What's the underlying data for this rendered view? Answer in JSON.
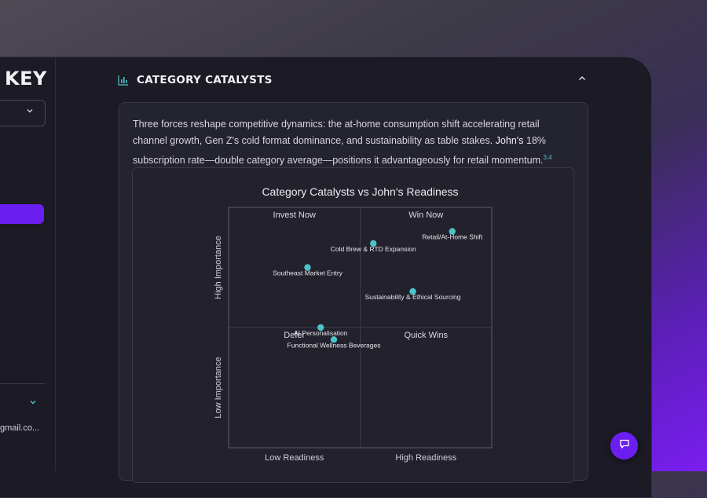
{
  "sidebar": {
    "brand_text": "KEY",
    "email_text": "gmail.co..."
  },
  "section": {
    "title": "CATEGORY CATALYSTS",
    "icon": "bar-chart-icon",
    "collapse_icon": "chevron-up-icon"
  },
  "summary": {
    "text_before": "Three forces reshape competitive dynamics: the at-home consumption shift accelerating retail channel growth, Gen Z's cold format dominance, and sustainability as table stakes.",
    "highlight": "John's",
    "text_after": "18% subscription rate—double category average—positions it advantageously for retail momentum.",
    "citation": "3,4"
  },
  "chart_data": {
    "type": "scatter",
    "title": "Category Catalysts vs John's Readiness",
    "x_tick_labels": [
      "Low Readiness",
      "High Readiness"
    ],
    "y_tick_labels": [
      "Low Importance",
      "High Importance"
    ],
    "quadrants": [
      "Invest Now",
      "Win Now",
      "Defer",
      "Quick Wins"
    ],
    "xlim": [
      0,
      10
    ],
    "ylim": [
      0,
      10
    ],
    "point_color": "#4bc4c9",
    "points": [
      {
        "label": "Retail/At-Home Shift",
        "x": 8.5,
        "y": 9.0
      },
      {
        "label": "Cold Brew & RTD Expansion",
        "x": 5.5,
        "y": 8.5
      },
      {
        "label": "Southeast Market Entry",
        "x": 3.0,
        "y": 7.5
      },
      {
        "label": "Sustainability & Ethical Sourcing",
        "x": 7.0,
        "y": 6.5
      },
      {
        "label": "AI Personalisation",
        "x": 3.5,
        "y": 5.0
      },
      {
        "label": "Functional Wellness Beverages",
        "x": 4.0,
        "y": 4.5
      }
    ]
  },
  "colors": {
    "accent": "#6a1ff0",
    "teal": "#4bc4c9"
  },
  "chat": {
    "icon": "chat-icon"
  }
}
